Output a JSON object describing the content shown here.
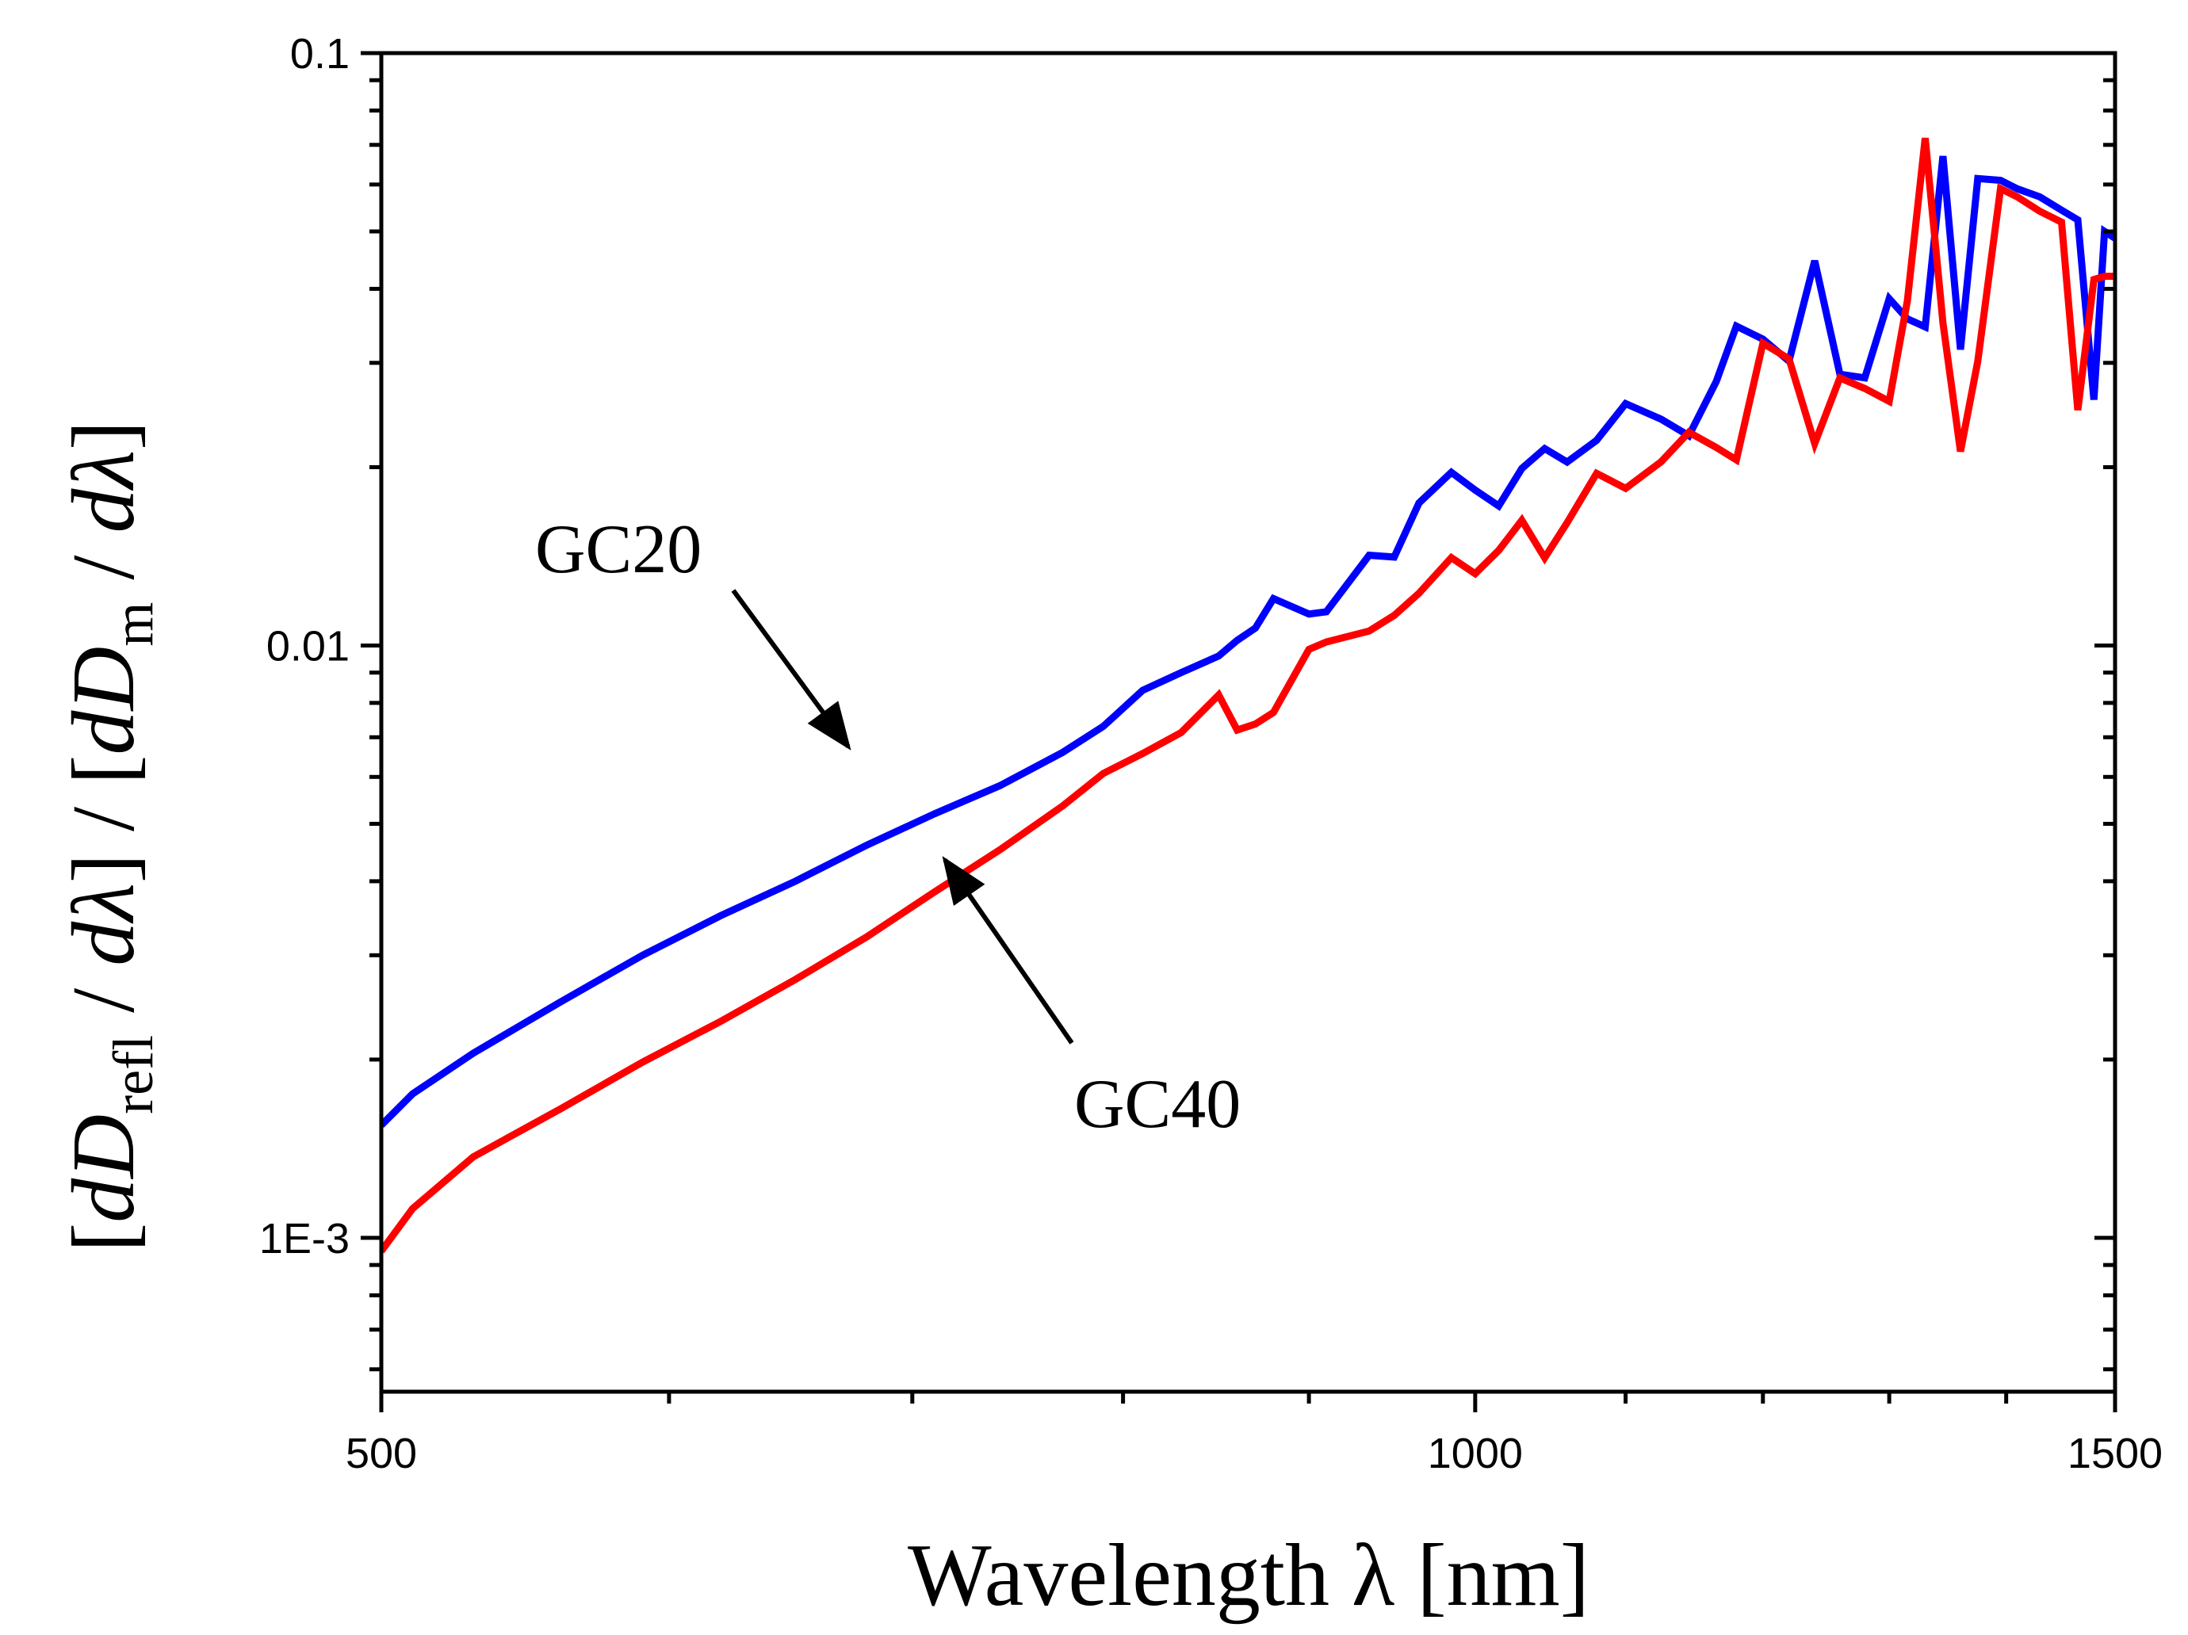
{
  "chart_data": {
    "type": "line",
    "title": "",
    "xlabel": "Wavelength λ [nm]",
    "ylabel": "[dD_refl / dλ] / [dD_m / dλ]",
    "ylabel_parts": {
      "b1": "[",
      "d1": "d",
      "D1": "D",
      "sub1": "refl",
      "slash1": " / ",
      "lam1": "dλ",
      "b2": "]",
      "mid": " / ",
      "b3": "[",
      "d2": "d",
      "D2": "D",
      "sub2": "m",
      "slash2": " / ",
      "lam2": "dλ",
      "b4": "]"
    },
    "xscale": "log",
    "yscale": "log",
    "xlim": [
      500,
      1500
    ],
    "ylim": [
      0.00055,
      0.1
    ],
    "x_ticks": [
      {
        "value": 500,
        "label": "500"
      },
      {
        "value": 1000,
        "label": "1000"
      },
      {
        "value": 1500,
        "label": "1500"
      }
    ],
    "x_minor_ticks": [
      600,
      700,
      800,
      900,
      1100,
      1200,
      1300,
      1400
    ],
    "y_ticks": [
      {
        "value": 0.001,
        "label": "1E-3"
      },
      {
        "value": 0.01,
        "label": "0.01"
      },
      {
        "value": 0.1,
        "label": "0.1"
      }
    ],
    "y_minor_ticks": [
      0.0006,
      0.0007,
      0.0008,
      0.0009,
      0.002,
      0.003,
      0.004,
      0.005,
      0.006,
      0.007,
      0.008,
      0.009,
      0.02,
      0.03,
      0.04,
      0.05,
      0.06,
      0.07,
      0.08,
      0.09
    ],
    "grid": false,
    "legend": "none",
    "series": [
      {
        "name": "GC20",
        "color": "#0000ff",
        "x": [
          500,
          510,
          530,
          560,
          590,
          620,
          650,
          680,
          710,
          740,
          770,
          790,
          810,
          830,
          850,
          860,
          870,
          880,
          900,
          910,
          935,
          950,
          965,
          985,
          1000,
          1015,
          1030,
          1045,
          1060,
          1080,
          1100,
          1125,
          1145,
          1165,
          1180,
          1200,
          1220,
          1240,
          1260,
          1280,
          1300,
          1315,
          1330,
          1345,
          1360,
          1375,
          1395,
          1410,
          1430,
          1450,
          1465,
          1480,
          1490,
          1500
        ],
        "y": [
          0.00155,
          0.00175,
          0.00205,
          0.0025,
          0.003,
          0.0035,
          0.004,
          0.0046,
          0.0052,
          0.0058,
          0.0066,
          0.0073,
          0.0084,
          0.009,
          0.0096,
          0.0102,
          0.0107,
          0.012,
          0.0113,
          0.0114,
          0.0142,
          0.0141,
          0.0174,
          0.0196,
          0.0183,
          0.0172,
          0.0199,
          0.0215,
          0.0204,
          0.0222,
          0.0256,
          0.0241,
          0.0226,
          0.0279,
          0.0346,
          0.0329,
          0.0302,
          0.0446,
          0.0287,
          0.0283,
          0.0385,
          0.0356,
          0.0345,
          0.067,
          0.0316,
          0.0614,
          0.061,
          0.059,
          0.0572,
          0.0543,
          0.0523,
          0.026,
          0.05,
          0.0487
        ]
      },
      {
        "name": "GC40",
        "color": "#ff0000",
        "x": [
          500,
          510,
          530,
          560,
          590,
          620,
          650,
          680,
          710,
          740,
          770,
          790,
          810,
          830,
          850,
          860,
          870,
          880,
          900,
          910,
          935,
          950,
          965,
          985,
          1000,
          1015,
          1030,
          1045,
          1060,
          1080,
          1100,
          1125,
          1145,
          1165,
          1180,
          1200,
          1220,
          1240,
          1260,
          1280,
          1300,
          1315,
          1330,
          1345,
          1360,
          1375,
          1395,
          1410,
          1430,
          1450,
          1465,
          1480,
          1490,
          1500
        ],
        "y": [
          0.00095,
          0.00112,
          0.00137,
          0.00165,
          0.00198,
          0.00232,
          0.00273,
          0.00322,
          0.00384,
          0.00452,
          0.00536,
          0.00608,
          0.00657,
          0.00713,
          0.00825,
          0.0072,
          0.00737,
          0.00771,
          0.00985,
          0.01014,
          0.01058,
          0.01124,
          0.01225,
          0.01407,
          0.01322,
          0.01447,
          0.01627,
          0.01406,
          0.01612,
          0.01952,
          0.01842,
          0.02042,
          0.02291,
          0.02159,
          0.02058,
          0.03238,
          0.03047,
          0.02193,
          0.0283,
          0.02715,
          0.02583,
          0.03818,
          0.07188,
          0.03503,
          0.02126,
          0.03017,
          0.05906,
          0.05718,
          0.05408,
          0.05184,
          0.02496,
          0.04148,
          0.042,
          0.042
        ]
      }
    ],
    "annotations": [
      {
        "text": "GC20",
        "target_series": "GC20"
      },
      {
        "text": "GC40",
        "target_series": "GC40"
      }
    ]
  }
}
